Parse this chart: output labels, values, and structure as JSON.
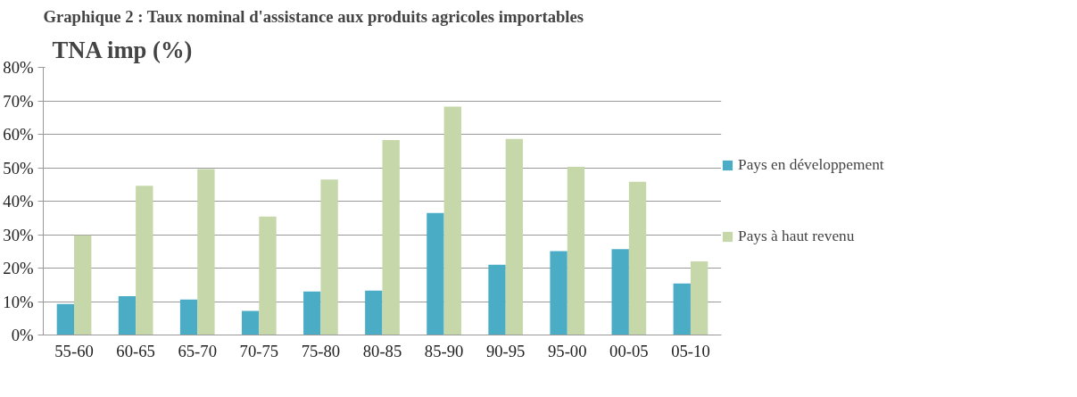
{
  "chart_data": {
    "type": "bar",
    "title": "Graphique 2 : Taux nominal d'assistance aux produits agricoles importables",
    "ylabel": "TNA imp (%)",
    "categories": [
      "55-60",
      "60-65",
      "65-70",
      "70-75",
      "75-80",
      "80-85",
      "85-90",
      "90-95",
      "95-00",
      "00-05",
      "05-10"
    ],
    "series": [
      {
        "name": "Pays en développement",
        "color": "#4bacc6",
        "values": [
          9.3,
          11.6,
          10.6,
          7.2,
          13.0,
          13.3,
          36.5,
          21.0,
          25.1,
          25.7,
          15.4
        ]
      },
      {
        "name": "Pays à haut revenu",
        "color": "#c6d7a9",
        "values": [
          29.8,
          44.6,
          49.6,
          35.4,
          46.5,
          58.3,
          68.3,
          58.6,
          50.3,
          45.8,
          22.0
        ]
      }
    ],
    "ylim": [
      0,
      80
    ],
    "yticks": [
      {
        "value": 0,
        "label": "0%"
      },
      {
        "value": 10,
        "label": "10%"
      },
      {
        "value": 20,
        "label": "20%"
      },
      {
        "value": 30,
        "label": "30%"
      },
      {
        "value": 40,
        "label": "40%"
      },
      {
        "value": 50,
        "label": "50%"
      },
      {
        "value": 60,
        "label": "60%"
      },
      {
        "value": 70,
        "label": "70%"
      },
      {
        "value": 80,
        "label": "80%"
      }
    ],
    "grid": "y",
    "legend": "right"
  }
}
